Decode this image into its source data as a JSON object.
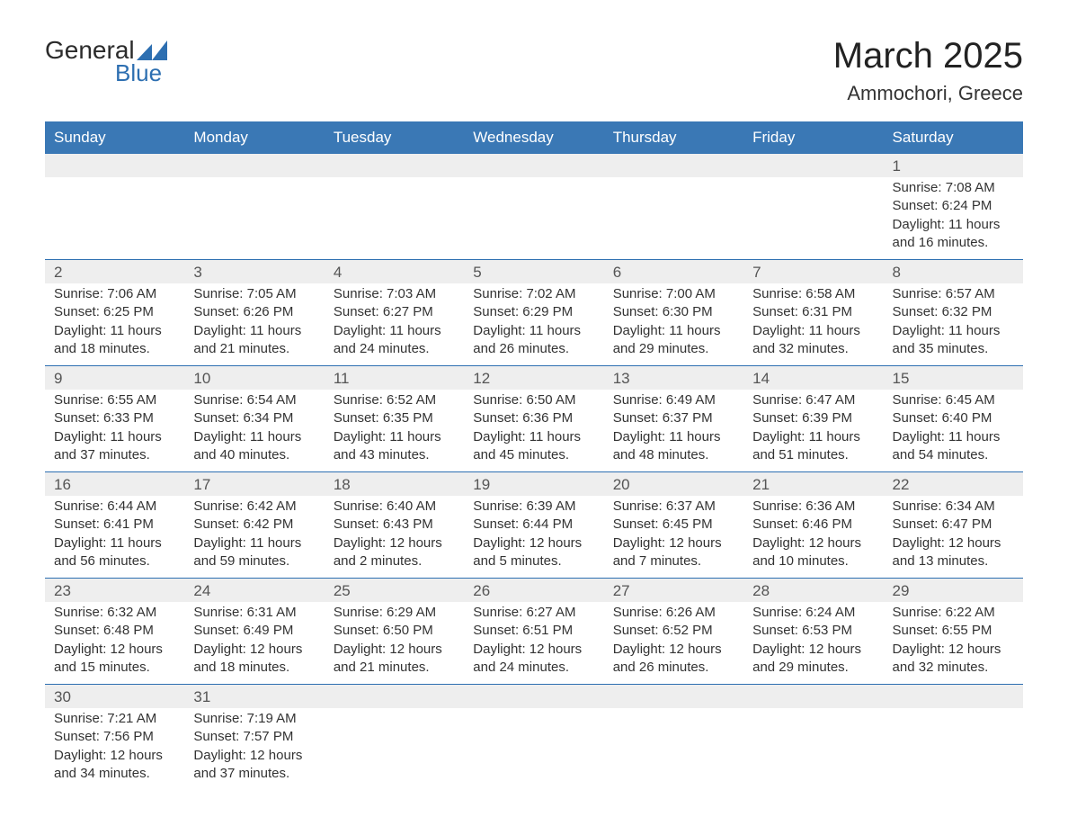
{
  "logo": {
    "text_general": "General",
    "text_blue": "Blue",
    "brand_color": "#2d6fb1"
  },
  "title": {
    "month": "March 2025",
    "location": "Ammochori, Greece"
  },
  "calendar": {
    "header_bg": "#3a78b5",
    "header_fg": "#ffffff",
    "daynum_bg": "#eeeeee",
    "sep_color": "#2d6fb1",
    "day_headers": [
      "Sunday",
      "Monday",
      "Tuesday",
      "Wednesday",
      "Thursday",
      "Friday",
      "Saturday"
    ],
    "weeks": [
      [
        null,
        null,
        null,
        null,
        null,
        null,
        {
          "n": "1",
          "l": [
            "Sunrise: 7:08 AM",
            "Sunset: 6:24 PM",
            "Daylight: 11 hours and 16 minutes."
          ]
        }
      ],
      [
        {
          "n": "2",
          "l": [
            "Sunrise: 7:06 AM",
            "Sunset: 6:25 PM",
            "Daylight: 11 hours and 18 minutes."
          ]
        },
        {
          "n": "3",
          "l": [
            "Sunrise: 7:05 AM",
            "Sunset: 6:26 PM",
            "Daylight: 11 hours and 21 minutes."
          ]
        },
        {
          "n": "4",
          "l": [
            "Sunrise: 7:03 AM",
            "Sunset: 6:27 PM",
            "Daylight: 11 hours and 24 minutes."
          ]
        },
        {
          "n": "5",
          "l": [
            "Sunrise: 7:02 AM",
            "Sunset: 6:29 PM",
            "Daylight: 11 hours and 26 minutes."
          ]
        },
        {
          "n": "6",
          "l": [
            "Sunrise: 7:00 AM",
            "Sunset: 6:30 PM",
            "Daylight: 11 hours and 29 minutes."
          ]
        },
        {
          "n": "7",
          "l": [
            "Sunrise: 6:58 AM",
            "Sunset: 6:31 PM",
            "Daylight: 11 hours and 32 minutes."
          ]
        },
        {
          "n": "8",
          "l": [
            "Sunrise: 6:57 AM",
            "Sunset: 6:32 PM",
            "Daylight: 11 hours and 35 minutes."
          ]
        }
      ],
      [
        {
          "n": "9",
          "l": [
            "Sunrise: 6:55 AM",
            "Sunset: 6:33 PM",
            "Daylight: 11 hours and 37 minutes."
          ]
        },
        {
          "n": "10",
          "l": [
            "Sunrise: 6:54 AM",
            "Sunset: 6:34 PM",
            "Daylight: 11 hours and 40 minutes."
          ]
        },
        {
          "n": "11",
          "l": [
            "Sunrise: 6:52 AM",
            "Sunset: 6:35 PM",
            "Daylight: 11 hours and 43 minutes."
          ]
        },
        {
          "n": "12",
          "l": [
            "Sunrise: 6:50 AM",
            "Sunset: 6:36 PM",
            "Daylight: 11 hours and 45 minutes."
          ]
        },
        {
          "n": "13",
          "l": [
            "Sunrise: 6:49 AM",
            "Sunset: 6:37 PM",
            "Daylight: 11 hours and 48 minutes."
          ]
        },
        {
          "n": "14",
          "l": [
            "Sunrise: 6:47 AM",
            "Sunset: 6:39 PM",
            "Daylight: 11 hours and 51 minutes."
          ]
        },
        {
          "n": "15",
          "l": [
            "Sunrise: 6:45 AM",
            "Sunset: 6:40 PM",
            "Daylight: 11 hours and 54 minutes."
          ]
        }
      ],
      [
        {
          "n": "16",
          "l": [
            "Sunrise: 6:44 AM",
            "Sunset: 6:41 PM",
            "Daylight: 11 hours and 56 minutes."
          ]
        },
        {
          "n": "17",
          "l": [
            "Sunrise: 6:42 AM",
            "Sunset: 6:42 PM",
            "Daylight: 11 hours and 59 minutes."
          ]
        },
        {
          "n": "18",
          "l": [
            "Sunrise: 6:40 AM",
            "Sunset: 6:43 PM",
            "Daylight: 12 hours and 2 minutes."
          ]
        },
        {
          "n": "19",
          "l": [
            "Sunrise: 6:39 AM",
            "Sunset: 6:44 PM",
            "Daylight: 12 hours and 5 minutes."
          ]
        },
        {
          "n": "20",
          "l": [
            "Sunrise: 6:37 AM",
            "Sunset: 6:45 PM",
            "Daylight: 12 hours and 7 minutes."
          ]
        },
        {
          "n": "21",
          "l": [
            "Sunrise: 6:36 AM",
            "Sunset: 6:46 PM",
            "Daylight: 12 hours and 10 minutes."
          ]
        },
        {
          "n": "22",
          "l": [
            "Sunrise: 6:34 AM",
            "Sunset: 6:47 PM",
            "Daylight: 12 hours and 13 minutes."
          ]
        }
      ],
      [
        {
          "n": "23",
          "l": [
            "Sunrise: 6:32 AM",
            "Sunset: 6:48 PM",
            "Daylight: 12 hours and 15 minutes."
          ]
        },
        {
          "n": "24",
          "l": [
            "Sunrise: 6:31 AM",
            "Sunset: 6:49 PM",
            "Daylight: 12 hours and 18 minutes."
          ]
        },
        {
          "n": "25",
          "l": [
            "Sunrise: 6:29 AM",
            "Sunset: 6:50 PM",
            "Daylight: 12 hours and 21 minutes."
          ]
        },
        {
          "n": "26",
          "l": [
            "Sunrise: 6:27 AM",
            "Sunset: 6:51 PM",
            "Daylight: 12 hours and 24 minutes."
          ]
        },
        {
          "n": "27",
          "l": [
            "Sunrise: 6:26 AM",
            "Sunset: 6:52 PM",
            "Daylight: 12 hours and 26 minutes."
          ]
        },
        {
          "n": "28",
          "l": [
            "Sunrise: 6:24 AM",
            "Sunset: 6:53 PM",
            "Daylight: 12 hours and 29 minutes."
          ]
        },
        {
          "n": "29",
          "l": [
            "Sunrise: 6:22 AM",
            "Sunset: 6:55 PM",
            "Daylight: 12 hours and 32 minutes."
          ]
        }
      ],
      [
        {
          "n": "30",
          "l": [
            "Sunrise: 7:21 AM",
            "Sunset: 7:56 PM",
            "Daylight: 12 hours and 34 minutes."
          ]
        },
        {
          "n": "31",
          "l": [
            "Sunrise: 7:19 AM",
            "Sunset: 7:57 PM",
            "Daylight: 12 hours and 37 minutes."
          ]
        },
        null,
        null,
        null,
        null,
        null
      ]
    ]
  }
}
